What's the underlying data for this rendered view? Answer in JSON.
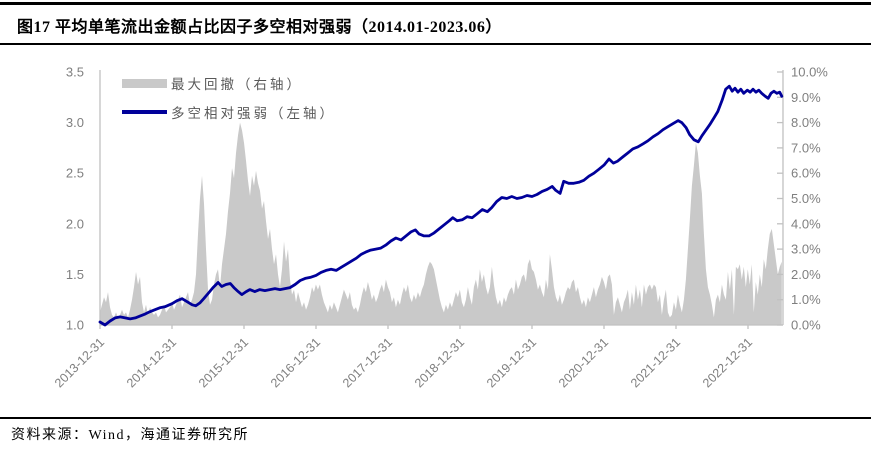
{
  "header": {
    "title": "图17 平均单笔流出金额占比因子多空相对强弱（2014.01-2023.06）"
  },
  "footer": {
    "source_label": "资料来源：",
    "source_text": "Wind，海通证券研究所"
  },
  "legend": [
    {
      "label": "最大回撤（右轴）"
    },
    {
      "label": "多空相对强弱（左轴）"
    }
  ],
  "colors": {
    "line": "#00009A",
    "area": "#C9C9C9",
    "axis": "#C1C1C1",
    "tick_text": "#7F7F7F",
    "legend_text": "#595959",
    "rule": "#000000"
  },
  "chart_data": {
    "type": "line",
    "title": "平均单笔流出金额占比因子多空相对强弱",
    "date_range": "2014.01-2023.06",
    "left_axis": {
      "label": "多空相对强弱（左轴）",
      "min": 1.0,
      "max": 3.5,
      "ticks": [
        "3.5",
        "3.0",
        "2.5",
        "2.0",
        "1.5",
        "1.0"
      ]
    },
    "right_axis": {
      "label": "最大回撤（右轴）",
      "min": 0,
      "max": 10,
      "ticks": [
        "10.0%",
        "9.0%",
        "8.0%",
        "7.0%",
        "6.0%",
        "5.0%",
        "4.0%",
        "3.0%",
        "2.0%",
        "1.0%",
        "0.0%"
      ]
    },
    "x_axis": {
      "labels": [
        "2013-12-31",
        "2014-12-31",
        "2015-12-31",
        "2016-12-31",
        "2017-12-31",
        "2018-12-31",
        "2019-12-31",
        "2020-12-31",
        "2021-12-31",
        "2022-12-31"
      ],
      "span_years": 9.47
    },
    "series": [
      {
        "name": "最大回撤（右轴）",
        "type": "area",
        "axis": "right",
        "color": "#C9C9C9",
        "x_start": 0,
        "x_end": 9.47,
        "values": [
          0.5,
          0.8,
          1.1,
          0.9,
          1.3,
          0.7,
          0.4,
          0.3,
          0.5,
          0.3,
          0.4,
          0.6,
          0.4,
          0.5,
          0.3,
          0.6,
          1.0,
          1.5,
          2.1,
          1.6,
          1.9,
          0.9,
          0.5,
          0.8,
          0.4,
          0.7,
          0.5,
          0.4,
          0.5,
          0.3,
          0.4,
          0.6,
          0.8,
          0.5,
          0.6,
          0.7,
          0.9,
          0.6,
          0.8,
          1.0,
          1.2,
          0.7,
          0.9,
          1.1,
          1.3,
          0.8,
          1.0,
          1.3,
          2.0,
          3.6,
          5.0,
          5.9,
          4.8,
          3.0,
          1.4,
          0.8,
          1.0,
          1.6,
          2.0,
          2.2,
          1.5,
          2.4,
          3.0,
          3.6,
          4.5,
          5.2,
          6.2,
          5.8,
          6.8,
          7.5,
          8.0,
          7.7,
          7.2,
          6.5,
          5.7,
          5.1,
          5.9,
          5.5,
          6.1,
          5.6,
          5.3,
          4.6,
          4.9,
          4.1,
          3.4,
          3.8,
          3.0,
          2.4,
          2.8,
          2.0,
          1.5,
          2.2,
          3.3,
          2.5,
          3.0,
          1.8,
          1.2,
          1.4,
          0.9,
          1.3,
          1.0,
          0.7,
          0.9,
          0.6,
          0.8,
          1.1,
          1.5,
          1.3,
          1.6,
          1.4,
          1.6,
          1.2,
          0.9,
          0.7,
          0.5,
          0.8,
          0.6,
          0.9,
          0.7,
          0.5,
          0.8,
          1.1,
          1.4,
          1.2,
          1.0,
          1.3,
          0.8,
          0.6,
          0.7,
          0.5,
          0.8,
          1.2,
          1.5,
          1.3,
          1.7,
          1.4,
          1.0,
          1.2,
          0.9,
          1.1,
          1.4,
          1.6,
          1.3,
          1.8,
          1.5,
          1.3,
          0.9,
          1.1,
          0.7,
          1.0,
          0.8,
          1.2,
          1.5,
          1.3,
          1.6,
          1.1,
          0.9,
          1.2,
          1.0,
          1.3,
          1.1,
          1.4,
          1.6,
          2.0,
          2.3,
          2.5,
          2.4,
          2.2,
          1.8,
          1.4,
          1.0,
          0.7,
          0.5,
          0.8,
          0.6,
          0.9,
          0.7,
          1.0,
          1.3,
          1.1,
          1.4,
          0.9,
          0.7,
          1.0,
          1.5,
          1.1,
          0.8,
          1.5,
          1.8,
          1.4,
          2.2,
          1.7,
          2.0,
          1.5,
          1.2,
          1.5,
          2.3,
          1.6,
          1.1,
          0.8,
          1.0,
          0.7,
          1.1,
          0.9,
          1.2,
          1.4,
          1.5,
          1.2,
          1.8,
          1.4,
          1.6,
          1.9,
          2.0,
          1.7,
          2.4,
          2.6,
          2.2,
          2.1,
          1.8,
          1.4,
          1.6,
          1.3,
          1.1,
          1.8,
          1.4,
          2.8,
          2.2,
          1.5,
          1.1,
          0.9,
          1.2,
          0.8,
          1.0,
          1.3,
          1.5,
          1.4,
          1.7,
          1.8,
          1.3,
          1.5,
          1.1,
          0.8,
          1.0,
          0.7,
          1.1,
          0.9,
          1.2,
          1.5,
          1.1,
          1.4,
          1.6,
          1.9,
          1.7,
          1.4,
          1.9,
          2.0,
          1.6,
          0.4,
          0.9,
          1.1,
          0.8,
          0.5,
          0.9,
          1.1,
          1.4,
          0.6,
          1.3,
          0.8,
          1.6,
          1.0,
          1.4,
          0.7,
          1.6,
          1.2,
          1.5,
          1.6,
          1.4,
          1.6,
          1.5,
          0.9,
          1.2,
          0.4,
          1.0,
          1.4,
          0.5,
          0.3,
          0.4,
          0.9,
          0.6,
          1.2,
          0.8,
          0.5,
          1.0,
          1.8,
          3.0,
          4.2,
          5.5,
          6.3,
          7.2,
          6.8,
          5.9,
          5.2,
          3.6,
          2.2,
          1.5,
          1.2,
          0.8,
          0.3,
          1.0,
          1.2,
          0.9,
          1.6,
          1.2,
          1.0,
          2.1,
          1.4,
          2.2,
          0.4,
          2.3,
          2.2,
          2.4,
          1.8,
          2.3,
          1.5,
          2.2,
          1.6,
          2.4,
          0.5,
          1.7,
          1.2,
          2.0,
          1.5,
          2.6,
          2.2,
          3.0,
          3.6,
          3.8,
          3.2,
          2.6,
          2.0,
          2.3,
          2.5
        ]
      },
      {
        "name": "多空相对强弱（左轴）",
        "type": "line",
        "axis": "left",
        "color": "#00009A",
        "points": [
          [
            0.0,
            1.03
          ],
          [
            0.07,
            1.0
          ],
          [
            0.14,
            1.04
          ],
          [
            0.21,
            1.07
          ],
          [
            0.28,
            1.08
          ],
          [
            0.35,
            1.07
          ],
          [
            0.42,
            1.06
          ],
          [
            0.49,
            1.07
          ],
          [
            0.56,
            1.09
          ],
          [
            0.63,
            1.11
          ],
          [
            0.69,
            1.13
          ],
          [
            0.76,
            1.15
          ],
          [
            0.83,
            1.17
          ],
          [
            0.9,
            1.18
          ],
          [
            1.0,
            1.21
          ],
          [
            1.07,
            1.24
          ],
          [
            1.14,
            1.26
          ],
          [
            1.21,
            1.23
          ],
          [
            1.28,
            1.2
          ],
          [
            1.33,
            1.19
          ],
          [
            1.39,
            1.22
          ],
          [
            1.44,
            1.26
          ],
          [
            1.5,
            1.31
          ],
          [
            1.57,
            1.37
          ],
          [
            1.64,
            1.42
          ],
          [
            1.69,
            1.38
          ],
          [
            1.75,
            1.4
          ],
          [
            1.81,
            1.41
          ],
          [
            1.86,
            1.37
          ],
          [
            1.92,
            1.33
          ],
          [
            1.97,
            1.3
          ],
          [
            2.03,
            1.33
          ],
          [
            2.08,
            1.35
          ],
          [
            2.15,
            1.33
          ],
          [
            2.22,
            1.35
          ],
          [
            2.29,
            1.34
          ],
          [
            2.36,
            1.35
          ],
          [
            2.43,
            1.36
          ],
          [
            2.5,
            1.35
          ],
          [
            2.57,
            1.36
          ],
          [
            2.64,
            1.37
          ],
          [
            2.71,
            1.4
          ],
          [
            2.78,
            1.44
          ],
          [
            2.85,
            1.46
          ],
          [
            2.92,
            1.47
          ],
          [
            3.0,
            1.49
          ],
          [
            3.07,
            1.52
          ],
          [
            3.14,
            1.54
          ],
          [
            3.21,
            1.55
          ],
          [
            3.28,
            1.54
          ],
          [
            3.35,
            1.57
          ],
          [
            3.42,
            1.6
          ],
          [
            3.49,
            1.63
          ],
          [
            3.56,
            1.66
          ],
          [
            3.63,
            1.7
          ],
          [
            3.69,
            1.72
          ],
          [
            3.76,
            1.74
          ],
          [
            3.83,
            1.75
          ],
          [
            3.9,
            1.76
          ],
          [
            3.97,
            1.79
          ],
          [
            4.04,
            1.83
          ],
          [
            4.11,
            1.86
          ],
          [
            4.18,
            1.84
          ],
          [
            4.25,
            1.88
          ],
          [
            4.32,
            1.92
          ],
          [
            4.38,
            1.94
          ],
          [
            4.43,
            1.9
          ],
          [
            4.5,
            1.88
          ],
          [
            4.57,
            1.88
          ],
          [
            4.64,
            1.91
          ],
          [
            4.71,
            1.95
          ],
          [
            4.78,
            1.99
          ],
          [
            4.85,
            2.03
          ],
          [
            4.9,
            2.06
          ],
          [
            4.96,
            2.03
          ],
          [
            5.03,
            2.04
          ],
          [
            5.1,
            2.07
          ],
          [
            5.17,
            2.06
          ],
          [
            5.24,
            2.1
          ],
          [
            5.31,
            2.14
          ],
          [
            5.38,
            2.12
          ],
          [
            5.44,
            2.16
          ],
          [
            5.51,
            2.22
          ],
          [
            5.58,
            2.26
          ],
          [
            5.65,
            2.25
          ],
          [
            5.72,
            2.27
          ],
          [
            5.79,
            2.25
          ],
          [
            5.86,
            2.26
          ],
          [
            5.93,
            2.28
          ],
          [
            6.0,
            2.27
          ],
          [
            6.07,
            2.29
          ],
          [
            6.14,
            2.32
          ],
          [
            6.21,
            2.34
          ],
          [
            6.28,
            2.37
          ],
          [
            6.33,
            2.33
          ],
          [
            6.39,
            2.3
          ],
          [
            6.44,
            2.42
          ],
          [
            6.51,
            2.4
          ],
          [
            6.58,
            2.4
          ],
          [
            6.65,
            2.41
          ],
          [
            6.72,
            2.43
          ],
          [
            6.79,
            2.47
          ],
          [
            6.86,
            2.5
          ],
          [
            6.93,
            2.54
          ],
          [
            7.0,
            2.58
          ],
          [
            7.07,
            2.64
          ],
          [
            7.13,
            2.6
          ],
          [
            7.19,
            2.62
          ],
          [
            7.26,
            2.66
          ],
          [
            7.33,
            2.7
          ],
          [
            7.4,
            2.74
          ],
          [
            7.47,
            2.76
          ],
          [
            7.54,
            2.79
          ],
          [
            7.61,
            2.82
          ],
          [
            7.68,
            2.86
          ],
          [
            7.75,
            2.89
          ],
          [
            7.82,
            2.93
          ],
          [
            7.89,
            2.96
          ],
          [
            7.96,
            2.99
          ],
          [
            8.03,
            3.02
          ],
          [
            8.08,
            3.0
          ],
          [
            8.14,
            2.95
          ],
          [
            8.19,
            2.88
          ],
          [
            8.25,
            2.83
          ],
          [
            8.31,
            2.81
          ],
          [
            8.36,
            2.87
          ],
          [
            8.42,
            2.93
          ],
          [
            8.47,
            2.98
          ],
          [
            8.53,
            3.05
          ],
          [
            8.58,
            3.11
          ],
          [
            8.64,
            3.22
          ],
          [
            8.69,
            3.33
          ],
          [
            8.74,
            3.36
          ],
          [
            8.78,
            3.31
          ],
          [
            8.82,
            3.34
          ],
          [
            8.86,
            3.3
          ],
          [
            8.9,
            3.33
          ],
          [
            8.94,
            3.29
          ],
          [
            8.99,
            3.32
          ],
          [
            9.03,
            3.3
          ],
          [
            9.07,
            3.33
          ],
          [
            9.11,
            3.3
          ],
          [
            9.15,
            3.32
          ],
          [
            9.19,
            3.29
          ],
          [
            9.24,
            3.26
          ],
          [
            9.28,
            3.24
          ],
          [
            9.32,
            3.29
          ],
          [
            9.36,
            3.31
          ],
          [
            9.4,
            3.29
          ],
          [
            9.44,
            3.3
          ],
          [
            9.47,
            3.26
          ]
        ]
      }
    ]
  }
}
